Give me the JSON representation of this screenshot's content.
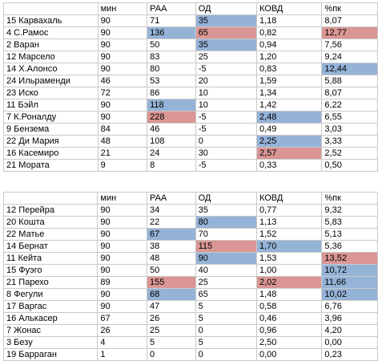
{
  "colors": {
    "blue": "#95b3d7",
    "red": "#da9694",
    "grid": "#c9c9c9"
  },
  "columns": [
    "",
    "мин",
    "РАА",
    "ОД",
    "КОВД",
    "%пк"
  ],
  "tables": [
    {
      "rows": [
        {
          "cells": [
            "15 Карвахаль",
            "90",
            "71",
            "35",
            "1,18",
            "8,07"
          ],
          "hl": [
            "",
            "",
            "",
            "blue",
            "",
            ""
          ]
        },
        {
          "cells": [
            "4 С.Рамос",
            "90",
            "136",
            "65",
            "0,82",
            "12,77"
          ],
          "hl": [
            "",
            "",
            "blue",
            "red",
            "",
            "red"
          ]
        },
        {
          "cells": [
            "2 Варан",
            "90",
            "50",
            "35",
            "0,94",
            "7,56"
          ],
          "hl": [
            "",
            "",
            "",
            "blue",
            "",
            ""
          ]
        },
        {
          "cells": [
            "12 Марсело",
            "90",
            "83",
            "25",
            "1,20",
            "9,24"
          ],
          "hl": [
            "",
            "",
            "",
            "",
            "",
            ""
          ]
        },
        {
          "cells": [
            "14 Х.Алонсо",
            "90",
            "80",
            "-5",
            "0,83",
            "12,44"
          ],
          "hl": [
            "",
            "",
            "",
            "",
            "",
            "blue"
          ]
        },
        {
          "cells": [
            "24 Ильраменди",
            "46",
            "53",
            "20",
            "1,59",
            "5,88"
          ],
          "hl": [
            "",
            "",
            "",
            "",
            "",
            ""
          ]
        },
        {
          "cells": [
            "23 Иско",
            "72",
            "86",
            "10",
            "1,34",
            "8,07"
          ],
          "hl": [
            "",
            "",
            "",
            "",
            "",
            ""
          ]
        },
        {
          "cells": [
            "11 Бэйл",
            "90",
            "118",
            "10",
            "1,42",
            "6,22"
          ],
          "hl": [
            "",
            "",
            "blue",
            "",
            "",
            ""
          ]
        },
        {
          "cells": [
            "7 К.Роналду",
            "90",
            "228",
            "-5",
            "2,48",
            "6,55"
          ],
          "hl": [
            "",
            "",
            "red",
            "",
            "blue",
            ""
          ]
        },
        {
          "cells": [
            "9 Бензема",
            "84",
            "46",
            "-5",
            "0,49",
            "3,03"
          ],
          "hl": [
            "",
            "",
            "",
            "",
            "",
            ""
          ]
        },
        {
          "cells": [
            "22 Ди Мария",
            "48",
            "108",
            "0",
            "2,25",
            "3,33"
          ],
          "hl": [
            "",
            "",
            "",
            "",
            "blue",
            ""
          ]
        },
        {
          "cells": [
            "16 Касемиро",
            "21",
            "24",
            "30",
            "2,57",
            "2,52"
          ],
          "hl": [
            "",
            "",
            "",
            "",
            "red",
            ""
          ]
        },
        {
          "cells": [
            "21 Мората",
            "9",
            "8",
            "-5",
            "0,33",
            "0,50"
          ],
          "hl": [
            "",
            "",
            "",
            "",
            "",
            ""
          ]
        }
      ]
    },
    {
      "rows": [
        {
          "cells": [
            "12 Перейра",
            "90",
            "34",
            "35",
            "0,77",
            "9,32"
          ],
          "hl": [
            "",
            "",
            "",
            "",
            "",
            ""
          ]
        },
        {
          "cells": [
            "20 Кошта",
            "90",
            "22",
            "80",
            "1,13",
            "5,83"
          ],
          "hl": [
            "",
            "",
            "",
            "blue",
            "",
            ""
          ]
        },
        {
          "cells": [
            "22 Матье",
            "90",
            "67",
            "70",
            "1,52",
            "5,13"
          ],
          "hl": [
            "",
            "",
            "blue",
            "",
            "",
            ""
          ]
        },
        {
          "cells": [
            "14 Бернат",
            "90",
            "38",
            "115",
            "1,70",
            "5,36"
          ],
          "hl": [
            "",
            "",
            "",
            "red",
            "blue",
            ""
          ]
        },
        {
          "cells": [
            "11 Кейта",
            "90",
            "48",
            "90",
            "1,53",
            "13,52"
          ],
          "hl": [
            "",
            "",
            "",
            "blue",
            "",
            "red"
          ]
        },
        {
          "cells": [
            "15 Фуэго",
            "90",
            "50",
            "40",
            "1,00",
            "10,72"
          ],
          "hl": [
            "",
            "",
            "",
            "",
            "",
            "blue"
          ]
        },
        {
          "cells": [
            "21 Парехо",
            "89",
            "155",
            "25",
            "2,02",
            "11,66"
          ],
          "hl": [
            "",
            "",
            "red",
            "",
            "red",
            "blue"
          ]
        },
        {
          "cells": [
            "8 Фегули",
            "90",
            "68",
            "65",
            "1,48",
            "10,02"
          ],
          "hl": [
            "",
            "",
            "blue",
            "",
            "",
            "blue"
          ]
        },
        {
          "cells": [
            "17 Варгас",
            "90",
            "47",
            "5",
            "0,58",
            "6,76"
          ],
          "hl": [
            "",
            "",
            "",
            "",
            "",
            ""
          ]
        },
        {
          "cells": [
            "16 Алькасер",
            "67",
            "26",
            "5",
            "0,46",
            "3,96"
          ],
          "hl": [
            "",
            "",
            "",
            "",
            "",
            ""
          ]
        },
        {
          "cells": [
            "7 Жонас",
            "26",
            "25",
            "0",
            "0,96",
            "4,20"
          ],
          "hl": [
            "",
            "",
            "",
            "",
            "",
            ""
          ]
        },
        {
          "cells": [
            "3 Безу",
            "4",
            "5",
            "5",
            "2,50",
            "0,00"
          ],
          "hl": [
            "",
            "",
            "",
            "",
            "",
            ""
          ]
        },
        {
          "cells": [
            "19 Барраган",
            "1",
            "0",
            "0",
            "0,00",
            "0,23"
          ],
          "hl": [
            "",
            "",
            "",
            "",
            "",
            ""
          ]
        }
      ]
    }
  ]
}
